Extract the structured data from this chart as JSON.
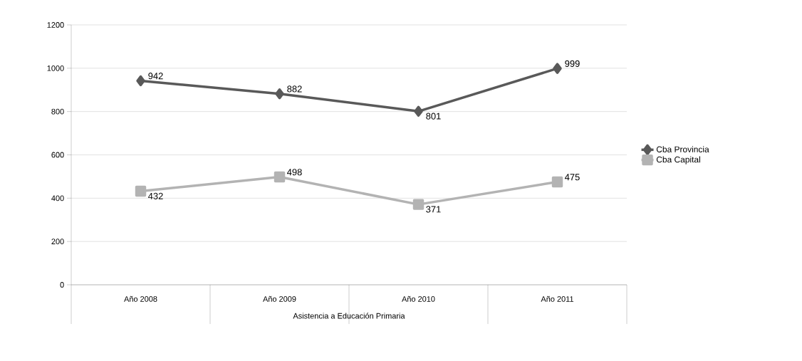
{
  "chart_data": {
    "type": "line",
    "xlabel": "Asistencia a Educación Primaria",
    "categories": [
      "Año 2008",
      "Año 2009",
      "Año 2010",
      "Año 2011"
    ],
    "series": [
      {
        "name": "Cba Provincia",
        "color": "#595959",
        "marker": "diamond",
        "values": [
          942,
          882,
          801,
          999
        ]
      },
      {
        "name": "Cba Capital",
        "color": "#b3b3b3",
        "marker": "square",
        "values": [
          432,
          498,
          371,
          475
        ]
      }
    ],
    "ylim": [
      0,
      1200
    ],
    "yticks": [
      0,
      200,
      400,
      600,
      800,
      1000,
      1200
    ],
    "grid": "y",
    "legend": "right",
    "data_labels": true,
    "line_style": "solid"
  }
}
